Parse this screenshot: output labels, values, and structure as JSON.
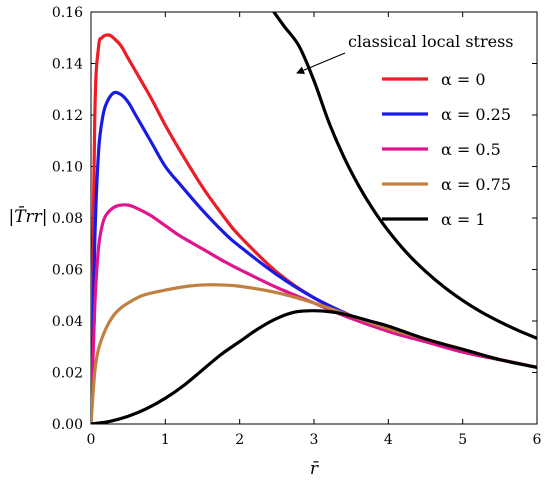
{
  "chart_data": {
    "type": "line",
    "xlabel": "r̄",
    "ylabel": "|T̄rr|",
    "xlim": [
      0,
      6
    ],
    "ylim": [
      0,
      0.16
    ],
    "xticks": [
      "0",
      "1",
      "2",
      "3",
      "4",
      "5",
      "6"
    ],
    "yticks": [
      "0.00",
      "0.02",
      "0.04",
      "0.06",
      "0.08",
      "0.10",
      "0.12",
      "0.14",
      "0.16"
    ],
    "grid": false,
    "legend_position": "top-right",
    "annotation": {
      "text": "classical local stress",
      "target": [
        2.8,
        0.1465
      ]
    },
    "series": [
      {
        "name": "α = 0",
        "color": "#ee1c25",
        "x": [
          0,
          0.05,
          0.1,
          0.15,
          0.2,
          0.25,
          0.3,
          0.4,
          0.5,
          0.6,
          0.8,
          1.0,
          1.2,
          1.5,
          1.8,
          2.0,
          2.5,
          3.0,
          3.5,
          4.0,
          4.5,
          5.0,
          5.5,
          6.0
        ],
        "y": [
          0,
          0.118,
          0.146,
          0.15,
          0.151,
          0.151,
          0.15,
          0.147,
          0.142,
          0.137,
          0.127,
          0.116,
          0.106,
          0.092,
          0.08,
          0.073,
          0.059,
          0.049,
          0.042,
          0.036,
          0.032,
          0.028,
          0.025,
          0.022
        ]
      },
      {
        "name": "α = 0.25",
        "color": "#1a1ae6",
        "x": [
          0,
          0.05,
          0.1,
          0.15,
          0.2,
          0.3,
          0.4,
          0.5,
          0.6,
          0.8,
          1.0,
          1.2,
          1.5,
          1.8,
          2.0,
          2.5,
          3.0,
          3.5,
          4.0,
          4.5,
          5.0,
          5.5,
          6.0
        ],
        "y": [
          0,
          0.07,
          0.105,
          0.118,
          0.124,
          0.1285,
          0.128,
          0.125,
          0.12,
          0.11,
          0.1,
          0.093,
          0.083,
          0.074,
          0.069,
          0.058,
          0.049,
          0.042,
          0.036,
          0.032,
          0.028,
          0.025,
          0.022
        ]
      },
      {
        "name": "α = 0.5",
        "color": "#e0148c",
        "x": [
          0,
          0.05,
          0.1,
          0.15,
          0.2,
          0.3,
          0.4,
          0.5,
          0.6,
          0.8,
          1.0,
          1.2,
          1.5,
          1.8,
          2.0,
          2.5,
          3.0,
          3.5,
          4.0,
          4.5,
          5.0,
          5.5,
          6.0
        ],
        "y": [
          0,
          0.045,
          0.068,
          0.077,
          0.081,
          0.084,
          0.085,
          0.085,
          0.084,
          0.081,
          0.077,
          0.073,
          0.068,
          0.063,
          0.06,
          0.053,
          0.047,
          0.041,
          0.036,
          0.032,
          0.028,
          0.025,
          0.022
        ]
      },
      {
        "name": "α = 0.75",
        "color": "#c08040",
        "x": [
          0,
          0.05,
          0.1,
          0.2,
          0.3,
          0.4,
          0.5,
          0.7,
          1.0,
          1.3,
          1.5,
          1.75,
          2.0,
          2.5,
          3.0,
          3.5,
          4.0,
          4.5,
          5.0,
          5.5,
          6.0
        ],
        "y": [
          0,
          0.02,
          0.029,
          0.037,
          0.042,
          0.045,
          0.047,
          0.05,
          0.052,
          0.0535,
          0.054,
          0.054,
          0.0535,
          0.051,
          0.047,
          0.042,
          0.037,
          0.033,
          0.029,
          0.025,
          0.022
        ]
      },
      {
        "name": "α = 1",
        "color": "#000000",
        "x": [
          0,
          0.25,
          0.5,
          0.75,
          1.0,
          1.25,
          1.5,
          1.75,
          2.0,
          2.25,
          2.5,
          2.75,
          3.0,
          3.25,
          3.5,
          3.75,
          4.0,
          4.5,
          5.0,
          5.5,
          6.0
        ],
        "y": [
          0,
          0.001,
          0.003,
          0.006,
          0.01,
          0.015,
          0.021,
          0.027,
          0.032,
          0.037,
          0.041,
          0.0435,
          0.044,
          0.0435,
          0.042,
          0.04,
          0.038,
          0.033,
          0.029,
          0.025,
          0.022
        ]
      },
      {
        "name": "classical local stress",
        "color": "#000000",
        "x": [
          2.46,
          2.6,
          2.8,
          3.0,
          3.2,
          3.4,
          3.6,
          3.8,
          4.0,
          4.25,
          4.5,
          4.75,
          5.0,
          5.25,
          5.5,
          5.75,
          6.0
        ],
        "y": [
          0.16,
          0.1544,
          0.1467,
          0.1333,
          0.1172,
          0.1038,
          0.0926,
          0.0831,
          0.075,
          0.0664,
          0.0593,
          0.0532,
          0.048,
          0.0435,
          0.0397,
          0.0363,
          0.0333
        ]
      }
    ]
  }
}
